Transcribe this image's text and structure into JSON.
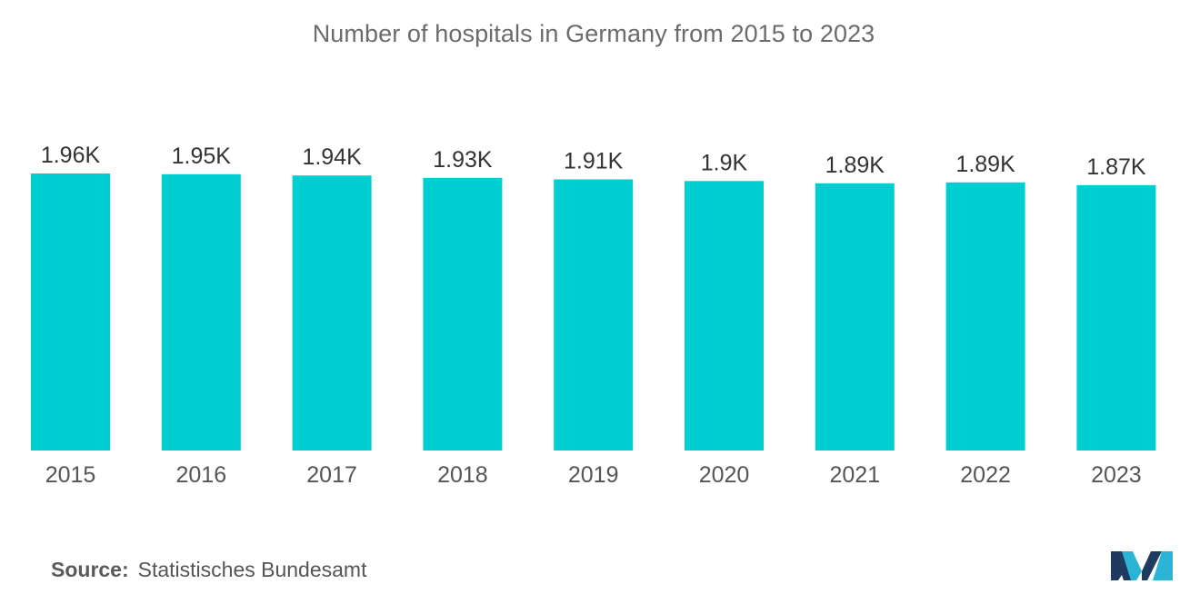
{
  "chart_data": {
    "type": "bar",
    "title": "Number of hospitals in Germany from 2015 to 2023",
    "categories": [
      "2015",
      "2016",
      "2017",
      "2018",
      "2019",
      "2020",
      "2021",
      "2022",
      "2023"
    ],
    "values": [
      1956,
      1951,
      1942,
      1925,
      1914,
      1903,
      1887,
      1893,
      1874
    ],
    "value_labels": [
      "1.96K",
      "1.95K",
      "1.94K",
      "1.93K",
      "1.91K",
      "1.9K",
      "1.89K",
      "1.89K",
      "1.87K"
    ],
    "xlabel": "",
    "ylabel": "",
    "ylim": [
      0,
      1956
    ],
    "grid": false,
    "legend": "none",
    "bar_color": "#00ced1"
  },
  "source": {
    "label": "Source:",
    "text": "Statistisches Bundesamt"
  },
  "logo": {
    "icon": "mordor-intelligence-logo-icon",
    "colors": [
      "#1e3a5f",
      "#2bb4d6"
    ]
  }
}
